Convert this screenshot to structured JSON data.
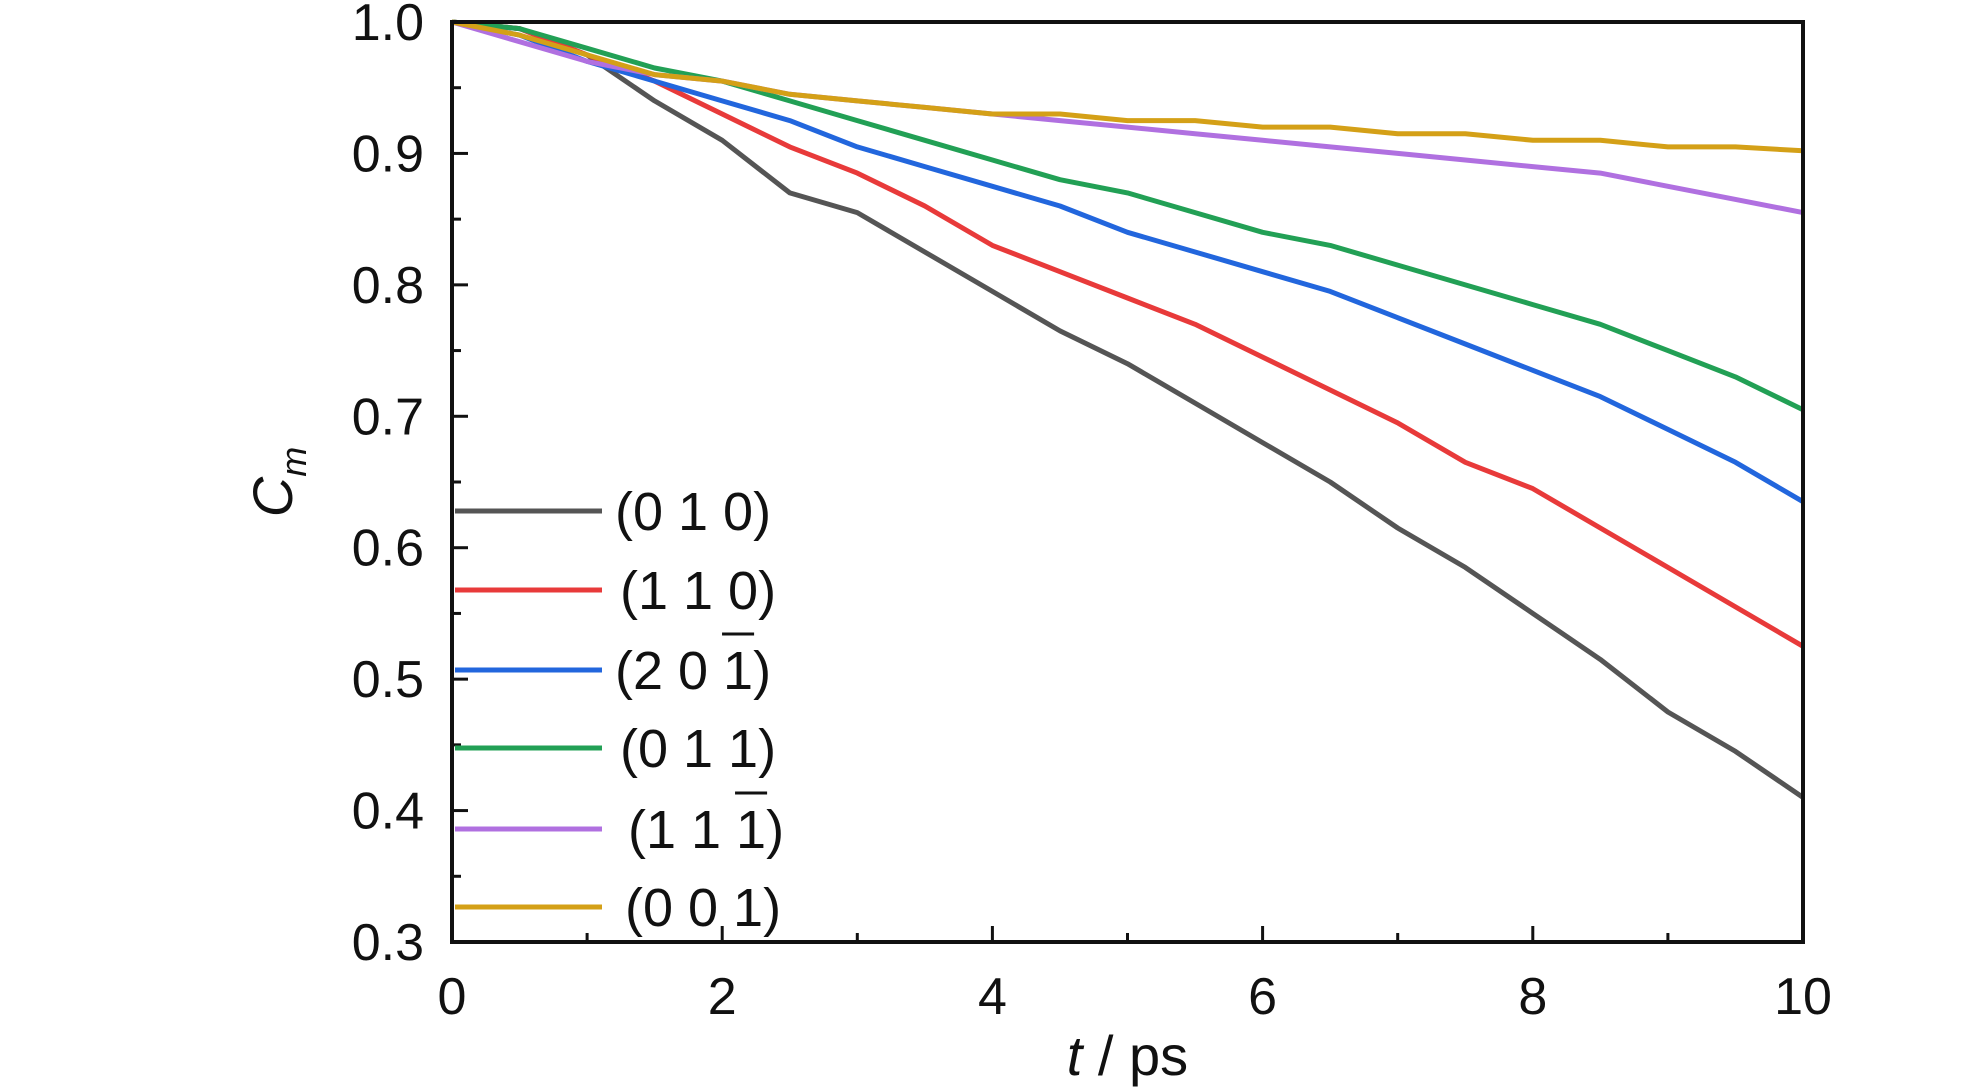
{
  "chart_data": {
    "type": "line",
    "xlabel": {
      "var": "t",
      "rest": " / ps"
    },
    "ylabel": {
      "var": "C",
      "sub": "m"
    },
    "xlim": [
      0,
      10
    ],
    "ylim": [
      0.3,
      1.0
    ],
    "xticks": [
      0,
      2,
      4,
      6,
      8,
      10
    ],
    "xtick_labels": [
      "0",
      "2",
      "4",
      "6",
      "8",
      "10"
    ],
    "yticks": [
      0.3,
      0.4,
      0.5,
      0.6,
      0.7,
      0.8,
      0.9,
      1.0
    ],
    "ytick_labels": [
      "0.3",
      "0.4",
      "0.5",
      "0.6",
      "0.7",
      "0.8",
      "0.9",
      "1.0"
    ],
    "grid": false,
    "legend_position": "left",
    "series": [
      {
        "name": "(0 1 0)",
        "color": "#555555",
        "x": [
          0,
          0.5,
          1.0,
          1.5,
          2.0,
          2.5,
          3.0,
          3.5,
          4.0,
          4.5,
          5.0,
          5.5,
          6.0,
          6.5,
          7.0,
          7.5,
          8.0,
          8.5,
          9.0,
          9.5,
          10.0
        ],
        "y": [
          1.0,
          0.995,
          0.975,
          0.94,
          0.91,
          0.87,
          0.855,
          0.825,
          0.795,
          0.765,
          0.74,
          0.71,
          0.68,
          0.65,
          0.615,
          0.585,
          0.55,
          0.515,
          0.475,
          0.445,
          0.41
        ]
      },
      {
        "name": "(1 1 0)",
        "color": "#e83a3a",
        "x": [
          0,
          0.5,
          1.0,
          1.5,
          2.0,
          2.5,
          3.0,
          3.5,
          4.0,
          4.5,
          5.0,
          5.5,
          6.0,
          6.5,
          7.0,
          7.5,
          8.0,
          8.5,
          9.0,
          9.5,
          10.0
        ],
        "y": [
          1.0,
          0.995,
          0.975,
          0.955,
          0.93,
          0.905,
          0.885,
          0.86,
          0.83,
          0.81,
          0.79,
          0.77,
          0.745,
          0.72,
          0.695,
          0.665,
          0.645,
          0.615,
          0.585,
          0.555,
          0.525
        ]
      },
      {
        "name": "(2 0 1)",
        "color": "#2266dd",
        "x": [
          0,
          0.5,
          1.0,
          1.5,
          2.0,
          2.5,
          3.0,
          3.5,
          4.0,
          4.5,
          5.0,
          5.5,
          6.0,
          6.5,
          7.0,
          7.5,
          8.0,
          8.5,
          9.0,
          9.5,
          10.0
        ],
        "y": [
          1.0,
          0.99,
          0.97,
          0.955,
          0.94,
          0.925,
          0.905,
          0.89,
          0.875,
          0.86,
          0.84,
          0.825,
          0.81,
          0.795,
          0.775,
          0.755,
          0.735,
          0.715,
          0.69,
          0.665,
          0.635
        ]
      },
      {
        "name": "(0 1 1)",
        "color": "#22a055",
        "x": [
          0,
          0.5,
          1.0,
          1.5,
          2.0,
          2.5,
          3.0,
          3.5,
          4.0,
          4.5,
          5.0,
          5.5,
          6.0,
          6.5,
          7.0,
          7.5,
          8.0,
          8.5,
          9.0,
          9.5,
          10.0
        ],
        "y": [
          1.0,
          0.995,
          0.98,
          0.965,
          0.955,
          0.94,
          0.925,
          0.91,
          0.895,
          0.88,
          0.87,
          0.855,
          0.84,
          0.83,
          0.815,
          0.8,
          0.785,
          0.77,
          0.75,
          0.73,
          0.705
        ]
      },
      {
        "name": "(1 1 1)",
        "color": "#b070e0",
        "x": [
          0,
          0.5,
          1.0,
          1.5,
          2.0,
          2.5,
          3.0,
          3.5,
          4.0,
          4.5,
          5.0,
          5.5,
          6.0,
          6.5,
          7.0,
          7.5,
          8.0,
          8.5,
          9.0,
          9.5,
          10.0
        ],
        "y": [
          1.0,
          0.985,
          0.97,
          0.96,
          0.955,
          0.945,
          0.94,
          0.935,
          0.93,
          0.925,
          0.92,
          0.915,
          0.91,
          0.905,
          0.9,
          0.895,
          0.89,
          0.885,
          0.875,
          0.865,
          0.855
        ]
      },
      {
        "name": "(0 0 1)",
        "color": "#d4a017",
        "x": [
          0,
          0.5,
          1.0,
          1.5,
          2.0,
          2.5,
          3.0,
          3.5,
          4.0,
          4.5,
          5.0,
          5.5,
          6.0,
          6.5,
          7.0,
          7.5,
          8.0,
          8.5,
          9.0,
          9.5,
          10.0
        ],
        "y": [
          1.0,
          0.99,
          0.975,
          0.96,
          0.955,
          0.945,
          0.94,
          0.935,
          0.93,
          0.93,
          0.925,
          0.925,
          0.92,
          0.92,
          0.915,
          0.915,
          0.91,
          0.91,
          0.905,
          0.905,
          0.902
        ]
      }
    ]
  },
  "legend_overbars": [
    null,
    null,
    "1",
    null,
    "1",
    null
  ]
}
